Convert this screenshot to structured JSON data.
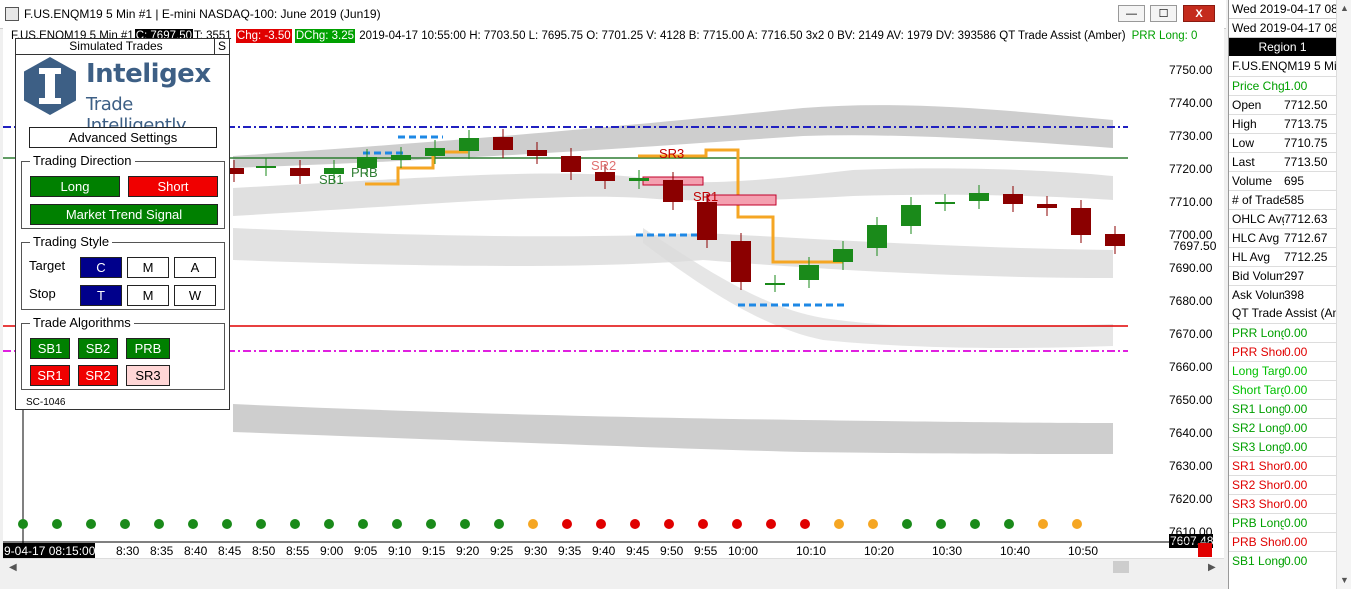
{
  "window": {
    "title": "F.US.ENQM19  5 Min   #1 | E-mini NASDAQ-100: June 2019 (Jun19)",
    "min": "—",
    "max": "☐",
    "close": "X"
  },
  "infobar": {
    "symbol": "F.US.ENQM19  5 Min   #1",
    "c": "C: 7697.50",
    "t": "T: 3551",
    "chg": "Chg: -3.50",
    "dchg": "DChg: 3.25",
    "detail": "2019-04-17 10:55:00 H: 7703.50 L: 7695.75 O: 7701.25 V: 4128 B: 7715.00 A: 7716.50 3x2 0 BV: 2149 AV: 1979 DV: 393586 QT Trade Assist (Amber)",
    "prr": "PRR Long: 0"
  },
  "panel": {
    "title": "Simulated Trades",
    "s_btn": "S",
    "logo_name": "Inteligex",
    "logo_tag": "Trade Intelligently",
    "advanced": "Advanced Settings",
    "direction": {
      "legend": "Trading Direction",
      "long": "Long",
      "short": "Short",
      "market": "Market Trend Signal"
    },
    "style": {
      "legend": "Trading Style",
      "target": "Target",
      "stop": "Stop",
      "c": "C",
      "m": "M",
      "a": "A",
      "t": "T",
      "m2": "M",
      "w": "W"
    },
    "algos": {
      "legend": "Trade Algorithms",
      "sb1": "SB1",
      "sb2": "SB2",
      "prb": "PRB",
      "sr1": "SR1",
      "sr2": "SR2",
      "sr3": "SR3"
    },
    "sc": "SC-1046"
  },
  "chart_data": {
    "type": "candlestick",
    "y_ticks": [
      "7750.00",
      "7740.00",
      "7730.00",
      "7720.00",
      "7710.00",
      "7700.00",
      "7690.00",
      "7680.00",
      "7670.00",
      "7660.00",
      "7650.00",
      "7640.00",
      "7630.00",
      "7620.00",
      "7610.00"
    ],
    "price_labels": {
      "last": "7697.50",
      "bottom": "7607.48"
    },
    "x_labels": [
      "8:30",
      "8:35",
      "8:40",
      "8:45",
      "8:50",
      "8:55",
      "9:00",
      "9:05",
      "9:10",
      "9:15",
      "9:20",
      "9:25",
      "9:30",
      "9:35",
      "9:40",
      "9:45",
      "9:50",
      "9:55",
      "10:00",
      "10:10",
      "10:20",
      "10:30",
      "10:40",
      "10:50"
    ],
    "cursor_time": "9-04-17 08:15:00",
    "markers": [
      "SB1",
      "PRB",
      "SR2",
      "SR3",
      "SR1"
    ],
    "dots": [
      "green",
      "green",
      "green",
      "green",
      "green",
      "green",
      "green",
      "green",
      "green",
      "green",
      "green",
      "green",
      "green",
      "green",
      "green",
      "orange",
      "red",
      "red",
      "red",
      "red",
      "red",
      "red",
      "red",
      "red",
      "orange",
      "orange",
      "green",
      "green",
      "green",
      "green",
      "orange",
      "orange"
    ]
  },
  "right_panel": {
    "dates": [
      "Wed 2019-04-17 08",
      "Wed 2019-04-17 08"
    ],
    "region": "Region 1",
    "symbol": "F.US.ENQM19  5 Min",
    "rows": [
      {
        "label": "Price Chg",
        "value": "1.00",
        "color": "#00a000"
      },
      {
        "label": "Open",
        "value": "7712.50",
        "color": "#000"
      },
      {
        "label": "High",
        "value": "7713.75",
        "color": "#000"
      },
      {
        "label": "Low",
        "value": "7710.75",
        "color": "#000"
      },
      {
        "label": "Last",
        "value": "7713.50",
        "color": "#000"
      },
      {
        "label": "Volume",
        "value": "695",
        "color": "#000"
      },
      {
        "label": "# of Trade",
        "value": "585",
        "color": "#000"
      },
      {
        "label": "OHLC Avg",
        "value": "7712.63",
        "color": "#000"
      },
      {
        "label": "HLC Avg",
        "value": "7712.67",
        "color": "#000"
      },
      {
        "label": "HL Avg",
        "value": "7712.25",
        "color": "#000"
      },
      {
        "label": "Bid Volum",
        "value": "297",
        "color": "#000"
      },
      {
        "label": "Ask Volum",
        "value": "398",
        "color": "#000"
      }
    ],
    "study": "QT Trade Assist (Am",
    "study_rows": [
      {
        "label": "PRR Long",
        "value": "0.00",
        "color": "#00a000"
      },
      {
        "label": "PRR Short",
        "value": "0.00",
        "color": "#e00000"
      },
      {
        "label": "Long Targ",
        "value": "0.00",
        "color": "#00c000"
      },
      {
        "label": "Short Targ",
        "value": "0.00",
        "color": "#00c000"
      },
      {
        "label": "SR1 Long",
        "value": "0.00",
        "color": "#00a000"
      },
      {
        "label": "SR2 Long",
        "value": "0.00",
        "color": "#00a000"
      },
      {
        "label": "SR3 Long",
        "value": "0.00",
        "color": "#00a000"
      },
      {
        "label": "SR1 Short",
        "value": "0.00",
        "color": "#e00000"
      },
      {
        "label": "SR2 Short",
        "value": "0.00",
        "color": "#e00000"
      },
      {
        "label": "SR3 Short",
        "value": "0.00",
        "color": "#e00000"
      },
      {
        "label": "PRB Long",
        "value": "0.00",
        "color": "#00a000"
      },
      {
        "label": "PRB Short",
        "value": "0.00",
        "color": "#e00000"
      },
      {
        "label": "SB1 Long",
        "value": "0.00",
        "color": "#00a000"
      }
    ]
  }
}
